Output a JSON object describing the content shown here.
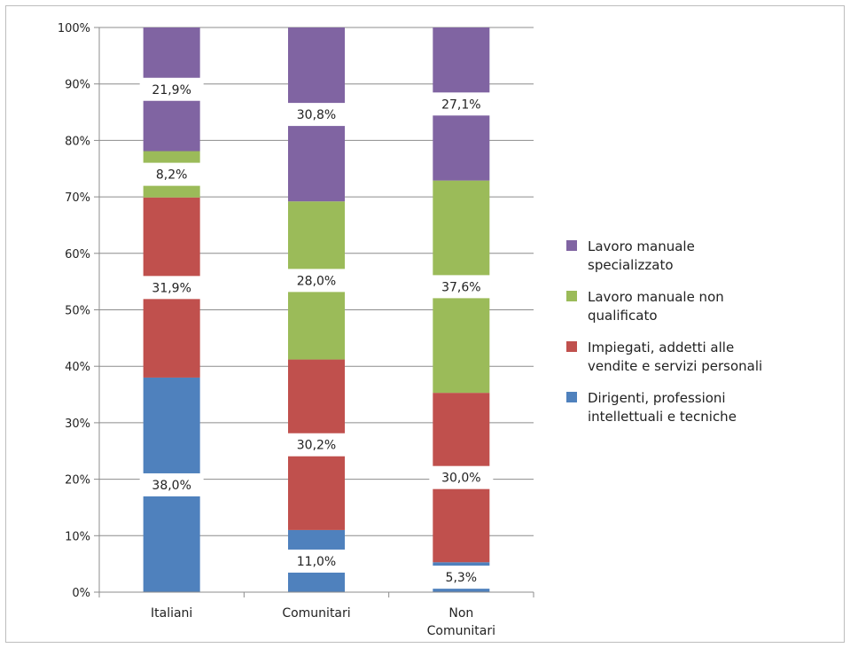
{
  "chart_data": {
    "type": "bar",
    "stacked": true,
    "percent": true,
    "categories": [
      "Italiani",
      "Comunitari",
      "Non Comunitari"
    ],
    "category_lines": [
      [
        "Italiani"
      ],
      [
        "Comunitari"
      ],
      [
        "Non",
        "Comunitari"
      ]
    ],
    "series": [
      {
        "name": "Dirigenti, professioni intellettuali e tecniche",
        "name_lines": [
          "Dirigenti, professioni",
          "intellettuali e tecniche"
        ],
        "values": [
          38.0,
          11.0,
          5.3
        ],
        "color": "#4f81bd"
      },
      {
        "name": "Impiegati, addetti alle vendite e servizi personali",
        "name_lines": [
          "Impiegati, addetti alle",
          "vendite e servizi personali"
        ],
        "values": [
          31.9,
          30.2,
          30.0
        ],
        "color": "#c0504d"
      },
      {
        "name": "Lavoro manuale non qualificato",
        "name_lines": [
          "Lavoro manuale non",
          "qualificato"
        ],
        "values": [
          8.2,
          28.0,
          37.6
        ],
        "color": "#9bbb59"
      },
      {
        "name": "Lavoro manuale specializzato",
        "name_lines": [
          "Lavoro manuale",
          "specializzato"
        ],
        "values": [
          21.9,
          30.8,
          27.1
        ],
        "color": "#8064a2"
      }
    ],
    "data_labels": [
      [
        "38,0%",
        "11,0%",
        "5,3%"
      ],
      [
        "31,9%",
        "30,2%",
        "30,0%"
      ],
      [
        "8,2%",
        "28,0%",
        "37,6%"
      ],
      [
        "21,9%",
        "30,8%",
        "27,1%"
      ]
    ],
    "y_ticks": [
      "0%",
      "10%",
      "20%",
      "30%",
      "40%",
      "50%",
      "60%",
      "70%",
      "80%",
      "90%",
      "100%"
    ],
    "ylim": [
      0,
      100
    ],
    "grid": true,
    "legend": "right",
    "title": "",
    "xlabel": "",
    "ylabel": ""
  }
}
